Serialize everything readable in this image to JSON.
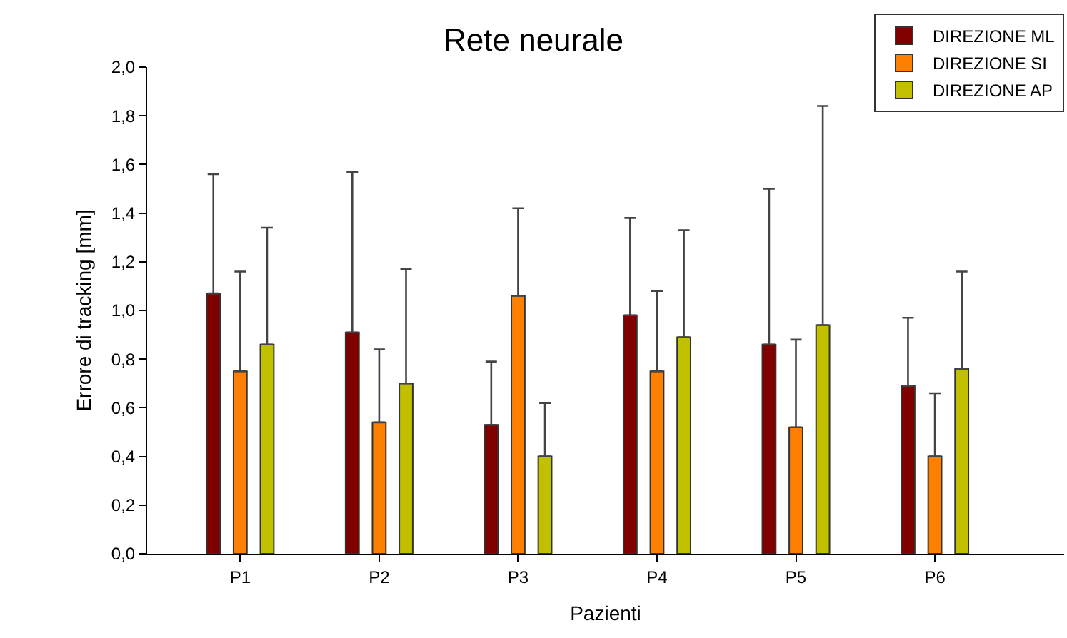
{
  "chart_data": {
    "type": "bar",
    "title": "Rete neurale",
    "xlabel": "Pazienti",
    "ylabel": "Errore di tracking [mm]",
    "categories": [
      "P1",
      "P2",
      "P3",
      "P4",
      "P5",
      "P6"
    ],
    "series": [
      {
        "name": "DIREZIONE ML",
        "color": "#800000",
        "values": [
          1.07,
          0.91,
          0.53,
          0.98,
          0.86,
          0.69
        ],
        "errors": [
          [
            1.07,
            1.56
          ],
          [
            0.91,
            1.57
          ],
          [
            0.53,
            0.79
          ],
          [
            0.98,
            1.38
          ],
          [
            0.86,
            1.5
          ],
          [
            0.69,
            0.97
          ]
        ]
      },
      {
        "name": "DIREZIONE SI",
        "color": "#ff8000",
        "values": [
          0.75,
          0.54,
          1.06,
          0.75,
          0.52,
          0.4
        ],
        "errors": [
          [
            0.75,
            1.16
          ],
          [
            0.54,
            0.84
          ],
          [
            1.06,
            1.42
          ],
          [
            0.75,
            1.08
          ],
          [
            0.52,
            0.88
          ],
          [
            0.4,
            0.66
          ]
        ]
      },
      {
        "name": "DIREZIONE AP",
        "color": "#c0c000",
        "values": [
          0.86,
          0.7,
          0.4,
          0.89,
          0.94,
          0.76
        ],
        "errors": [
          [
            0.86,
            1.34
          ],
          [
            0.7,
            1.17
          ],
          [
            0.4,
            0.62
          ],
          [
            0.89,
            1.33
          ],
          [
            0.94,
            1.84
          ],
          [
            0.76,
            1.16
          ]
        ]
      }
    ],
    "ylim": [
      0,
      2
    ],
    "yticks": [
      {
        "value": 0,
        "label": "0,0"
      },
      {
        "value": 0.2,
        "label": "0,2"
      },
      {
        "value": 0.4,
        "label": "0,4"
      },
      {
        "value": 0.6,
        "label": "0,6"
      },
      {
        "value": 0.8,
        "label": "0,8"
      },
      {
        "value": 1,
        "label": "1,0"
      },
      {
        "value": 1.2,
        "label": "1,2"
      },
      {
        "value": 1.4,
        "label": "1,4"
      },
      {
        "value": 1.6,
        "label": "1,6"
      },
      {
        "value": 1.8,
        "label": "1,8"
      },
      {
        "value": 2,
        "label": "2,0"
      }
    ],
    "grid": false,
    "legend": "top right"
  }
}
